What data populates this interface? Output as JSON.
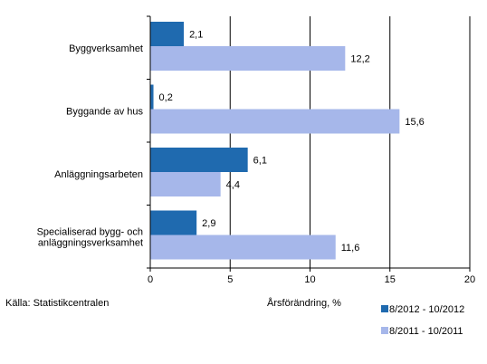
{
  "chart_data": {
    "type": "bar",
    "orientation": "horizontal",
    "categories": [
      [
        "Byggverksamhet"
      ],
      [
        "Byggande av hus"
      ],
      [
        "Anläggningsarbeten"
      ],
      [
        "Specialiserad bygg- och",
        "anläggningsverksamhet"
      ]
    ],
    "series": [
      {
        "name": "8/2012 - 10/2012",
        "color": "#1f6aaf",
        "values": [
          2.1,
          0.2,
          6.1,
          2.9
        ],
        "labels": [
          "2,1",
          "0,2",
          "6,1",
          "2,9"
        ]
      },
      {
        "name": "8/2011 - 10/2011",
        "color": "#a6b7ea",
        "values": [
          12.2,
          15.6,
          4.4,
          11.6
        ],
        "labels": [
          "12,2",
          "15,6",
          "4,4",
          "11,6"
        ]
      }
    ],
    "xlabel": "Årsförändring, %",
    "xlim": [
      0,
      20
    ],
    "xticks": [
      0,
      5,
      10,
      15,
      20
    ],
    "grid": true,
    "legend_position": "bottom-right"
  },
  "source": "Källa: Statistikcentralen"
}
